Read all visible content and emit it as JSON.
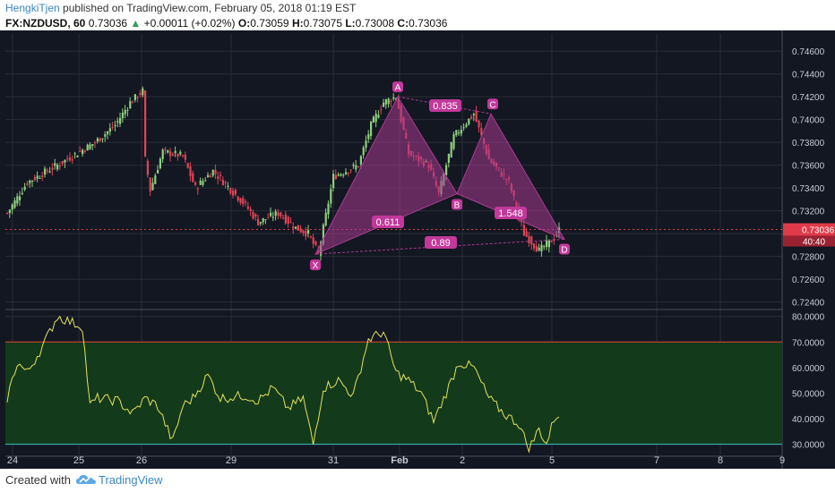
{
  "header": {
    "author": "HengkiTjen",
    "published": "published on TradingView.com, February 05, 2018 01:19 EST",
    "symbol": "FX:NZDUSD, 60",
    "last": "0.73036",
    "change": "+0.00011 (+0.02%)",
    "o_label": "O:",
    "o_value": "0.73059",
    "h_label": "H:",
    "h_value": "0.73075",
    "l_label": "L:",
    "l_value": "0.73008",
    "c_label": "C:",
    "c_value": "0.73036"
  },
  "colors": {
    "background": "#131722",
    "bull": "#8fcf7e",
    "bear": "#e04455",
    "pattern": "#a83a8f",
    "pattern_label": "#c2389b",
    "rsi_line": "#e3e35a",
    "rsi_band": "#143a1c",
    "rsi_upper": "#e04433",
    "rsi_lower": "#3ac2c2",
    "price_tag": "#e03a4a"
  },
  "price_axis": {
    "labels": [
      "0.74600",
      "0.74400",
      "0.74200",
      "0.74000",
      "0.73800",
      "0.73600",
      "0.73400",
      "0.73200",
      "0.72800",
      "0.72600",
      "0.72400"
    ],
    "current_price": "0.73036",
    "countdown": "40:40"
  },
  "rsi_axis": {
    "labels": [
      "80.0000",
      "70.0000",
      "60.0000",
      "50.0000",
      "40.0000",
      "30.0000"
    ]
  },
  "time_axis": {
    "labels": [
      "24",
      "25",
      "26",
      "29",
      "31",
      "Feb",
      "2",
      "5",
      "7",
      "8",
      "9"
    ]
  },
  "pattern": {
    "points": [
      "X",
      "A",
      "B",
      "C",
      "D"
    ],
    "ratios": [
      "0.835",
      "0.611",
      "1.548",
      "0.89"
    ]
  },
  "footer": {
    "created_with": "Created with",
    "brand": "TradingView"
  },
  "chart_data": {
    "type": "candlestick",
    "symbol": "FX:NZDUSD",
    "interval": "60",
    "ylim": [
      0.7235,
      0.7475
    ],
    "rsi_ylim": [
      26,
      82
    ],
    "rsi_levels": [
      70,
      30
    ],
    "xabc_points": {
      "X": 0.7282,
      "A": 0.742,
      "B": 0.7335,
      "C": 0.7405,
      "D": 0.7295
    },
    "pattern_ratios": {
      "XB": 0.611,
      "AC": 0.835,
      "BD": 1.548,
      "XD": 0.89
    },
    "price_anchors": [
      [
        0,
        0.7318
      ],
      [
        8,
        0.7345
      ],
      [
        20,
        0.736
      ],
      [
        35,
        0.738
      ],
      [
        43,
        0.7395
      ],
      [
        49,
        0.7415
      ],
      [
        54,
        0.7425
      ],
      [
        55,
        0.7365
      ],
      [
        57,
        0.7338
      ],
      [
        62,
        0.7372
      ],
      [
        70,
        0.7368
      ],
      [
        75,
        0.734
      ],
      [
        82,
        0.7355
      ],
      [
        95,
        0.7325
      ],
      [
        100,
        0.731
      ],
      [
        108,
        0.7318
      ],
      [
        115,
        0.7305
      ],
      [
        120,
        0.73
      ],
      [
        124,
        0.7282
      ],
      [
        130,
        0.735
      ],
      [
        140,
        0.736
      ],
      [
        145,
        0.7395
      ],
      [
        150,
        0.7415
      ],
      [
        155,
        0.742
      ],
      [
        160,
        0.737
      ],
      [
        168,
        0.736
      ],
      [
        172,
        0.7335
      ],
      [
        178,
        0.7385
      ],
      [
        186,
        0.7405
      ],
      [
        192,
        0.7365
      ],
      [
        200,
        0.7345
      ],
      [
        206,
        0.73
      ],
      [
        212,
        0.7285
      ],
      [
        218,
        0.7296
      ],
      [
        220,
        0.7303
      ]
    ],
    "rsi_anchors": [
      [
        0,
        48
      ],
      [
        4,
        62
      ],
      [
        8,
        58
      ],
      [
        14,
        68
      ],
      [
        20,
        80
      ],
      [
        25,
        78
      ],
      [
        30,
        76
      ],
      [
        33,
        45
      ],
      [
        36,
        48
      ],
      [
        44,
        47
      ],
      [
        50,
        42
      ],
      [
        55,
        48
      ],
      [
        60,
        45
      ],
      [
        66,
        31
      ],
      [
        70,
        45
      ],
      [
        74,
        48
      ],
      [
        80,
        57
      ],
      [
        85,
        48
      ],
      [
        95,
        49
      ],
      [
        100,
        47
      ],
      [
        106,
        52
      ],
      [
        112,
        44
      ],
      [
        118,
        48
      ],
      [
        122,
        30
      ],
      [
        126,
        52
      ],
      [
        132,
        55
      ],
      [
        138,
        49
      ],
      [
        144,
        71
      ],
      [
        150,
        74
      ],
      [
        155,
        58
      ],
      [
        160,
        55
      ],
      [
        165,
        50
      ],
      [
        170,
        39
      ],
      [
        175,
        50
      ],
      [
        180,
        62
      ],
      [
        186,
        60
      ],
      [
        192,
        48
      ],
      [
        198,
        42
      ],
      [
        204,
        38
      ],
      [
        208,
        28
      ],
      [
        212,
        36
      ],
      [
        215,
        30
      ],
      [
        218,
        40
      ],
      [
        220,
        42
      ]
    ]
  }
}
